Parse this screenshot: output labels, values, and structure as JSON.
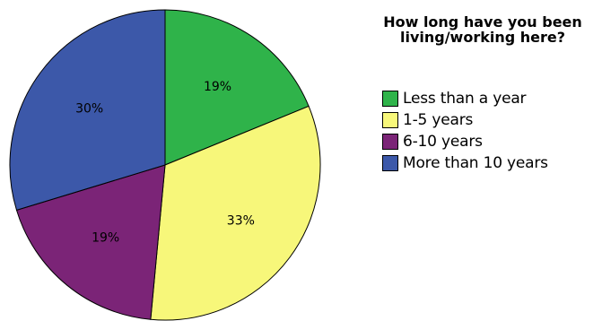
{
  "chart_data": {
    "type": "pie",
    "legend_title": "How long have you been living/working here?",
    "legend_position": "right",
    "slices": [
      {
        "name": "Less than a year",
        "value": 19,
        "label": "19%",
        "color": "#2fb34a"
      },
      {
        "name": "1-5 years",
        "value": 33,
        "label": "33%",
        "color": "#f7f77a"
      },
      {
        "name": "6-10 years",
        "value": 19,
        "label": "19%",
        "color": "#7b2477"
      },
      {
        "name": "More than 10 years",
        "value": 30,
        "label": "30%",
        "color": "#3c58a9"
      }
    ],
    "start_angle": "12 o'clock",
    "direction": "clockwise"
  }
}
